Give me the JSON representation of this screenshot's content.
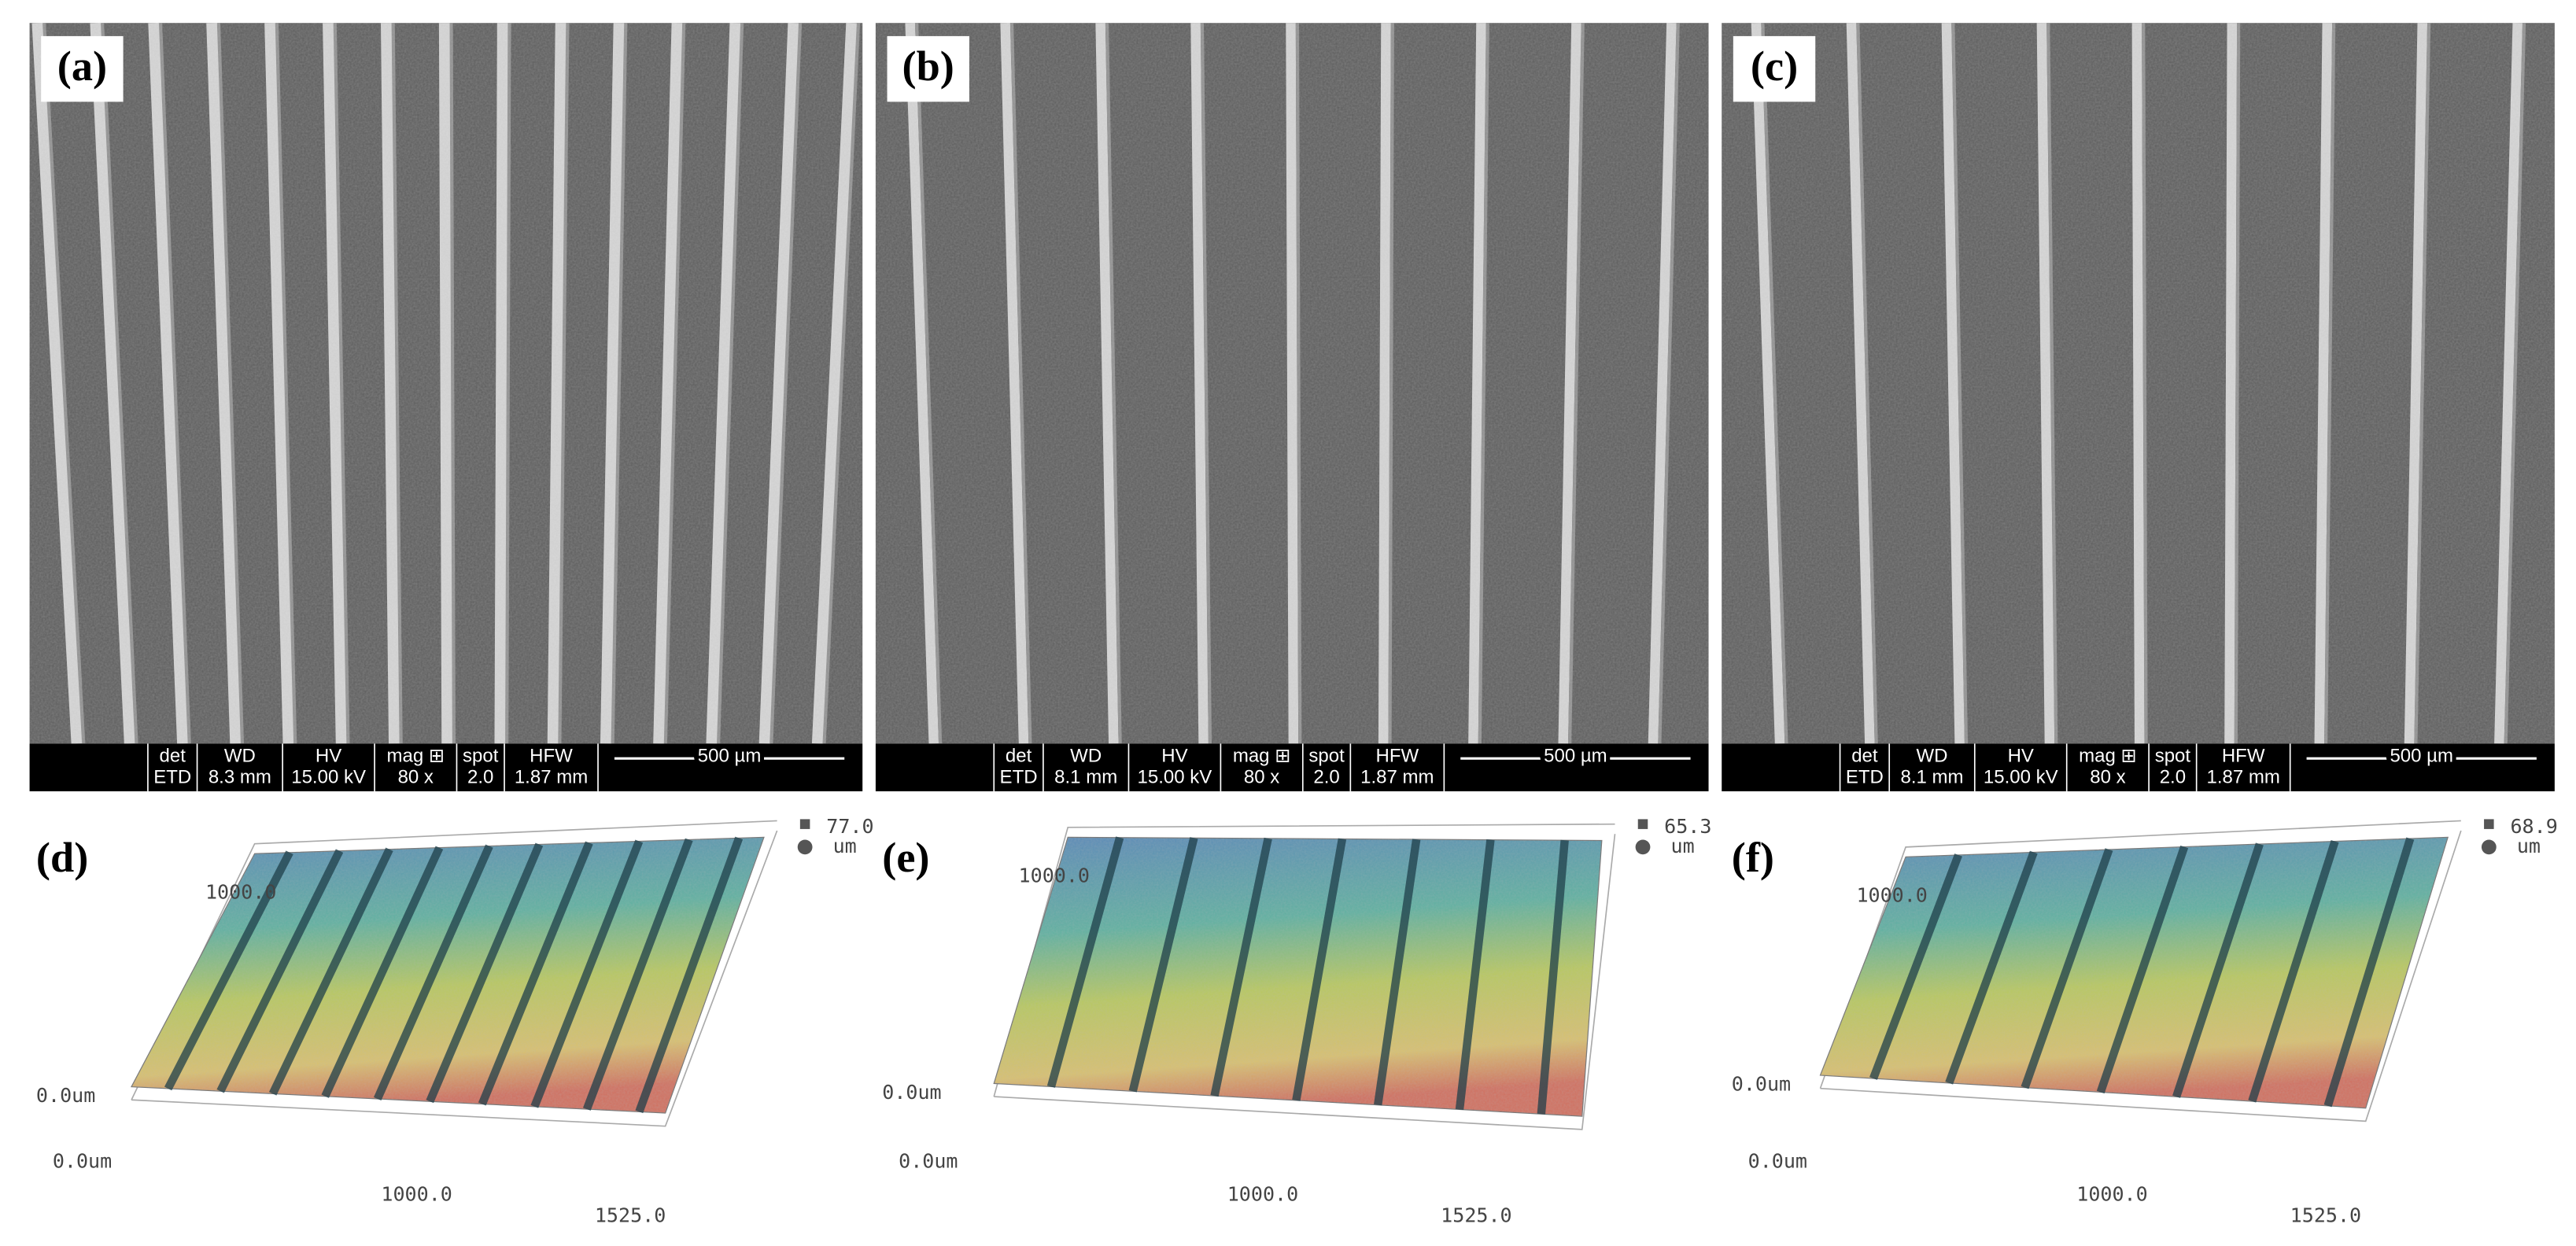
{
  "sem_panels": [
    {
      "label": "(a)",
      "info": {
        "headers": [
          "det",
          "WD",
          "HV",
          "mag ⊞",
          "spot",
          "HFW"
        ],
        "values": [
          "ETD",
          "8.3 mm",
          "15.00 kV",
          "80 x",
          "2.0",
          "1.87 mm"
        ]
      },
      "scale_bar": "500 µm"
    },
    {
      "label": "(b)",
      "info": {
        "headers": [
          "det",
          "WD",
          "HV",
          "mag ⊞",
          "spot",
          "HFW"
        ],
        "values": [
          "ETD",
          "8.1 mm",
          "15.00 kV",
          "80 x",
          "2.0",
          "1.87 mm"
        ]
      },
      "scale_bar": "500 µm"
    },
    {
      "label": "(c)",
      "info": {
        "headers": [
          "det",
          "WD",
          "HV",
          "mag ⊞",
          "spot",
          "HFW"
        ],
        "values": [
          "ETD",
          "8.1 mm",
          "15.00 kV",
          "80 x",
          "2.0",
          "1.87 mm"
        ]
      },
      "scale_bar": "500 µm"
    }
  ],
  "profile_panels": [
    {
      "label": "(d)",
      "z_max": "77.0",
      "z_unit": "um",
      "y_max": "1000.0",
      "origin_z": "0.0um",
      "origin_x": "0.0um",
      "x_mid": "1000.0",
      "x_max": "1525.0"
    },
    {
      "label": "(e)",
      "z_max": "65.3",
      "z_unit": "um",
      "y_max": "1000.0",
      "origin_z": "0.0um",
      "origin_x": "0.0um",
      "x_mid": "1000.0",
      "x_max": "1525.0"
    },
    {
      "label": "(f)",
      "z_max": "68.9",
      "z_unit": "um",
      "y_max": "1000.0",
      "origin_z": "0.0um",
      "origin_x": "0.0um",
      "x_mid": "1000.0",
      "x_max": "1525.0"
    }
  ]
}
